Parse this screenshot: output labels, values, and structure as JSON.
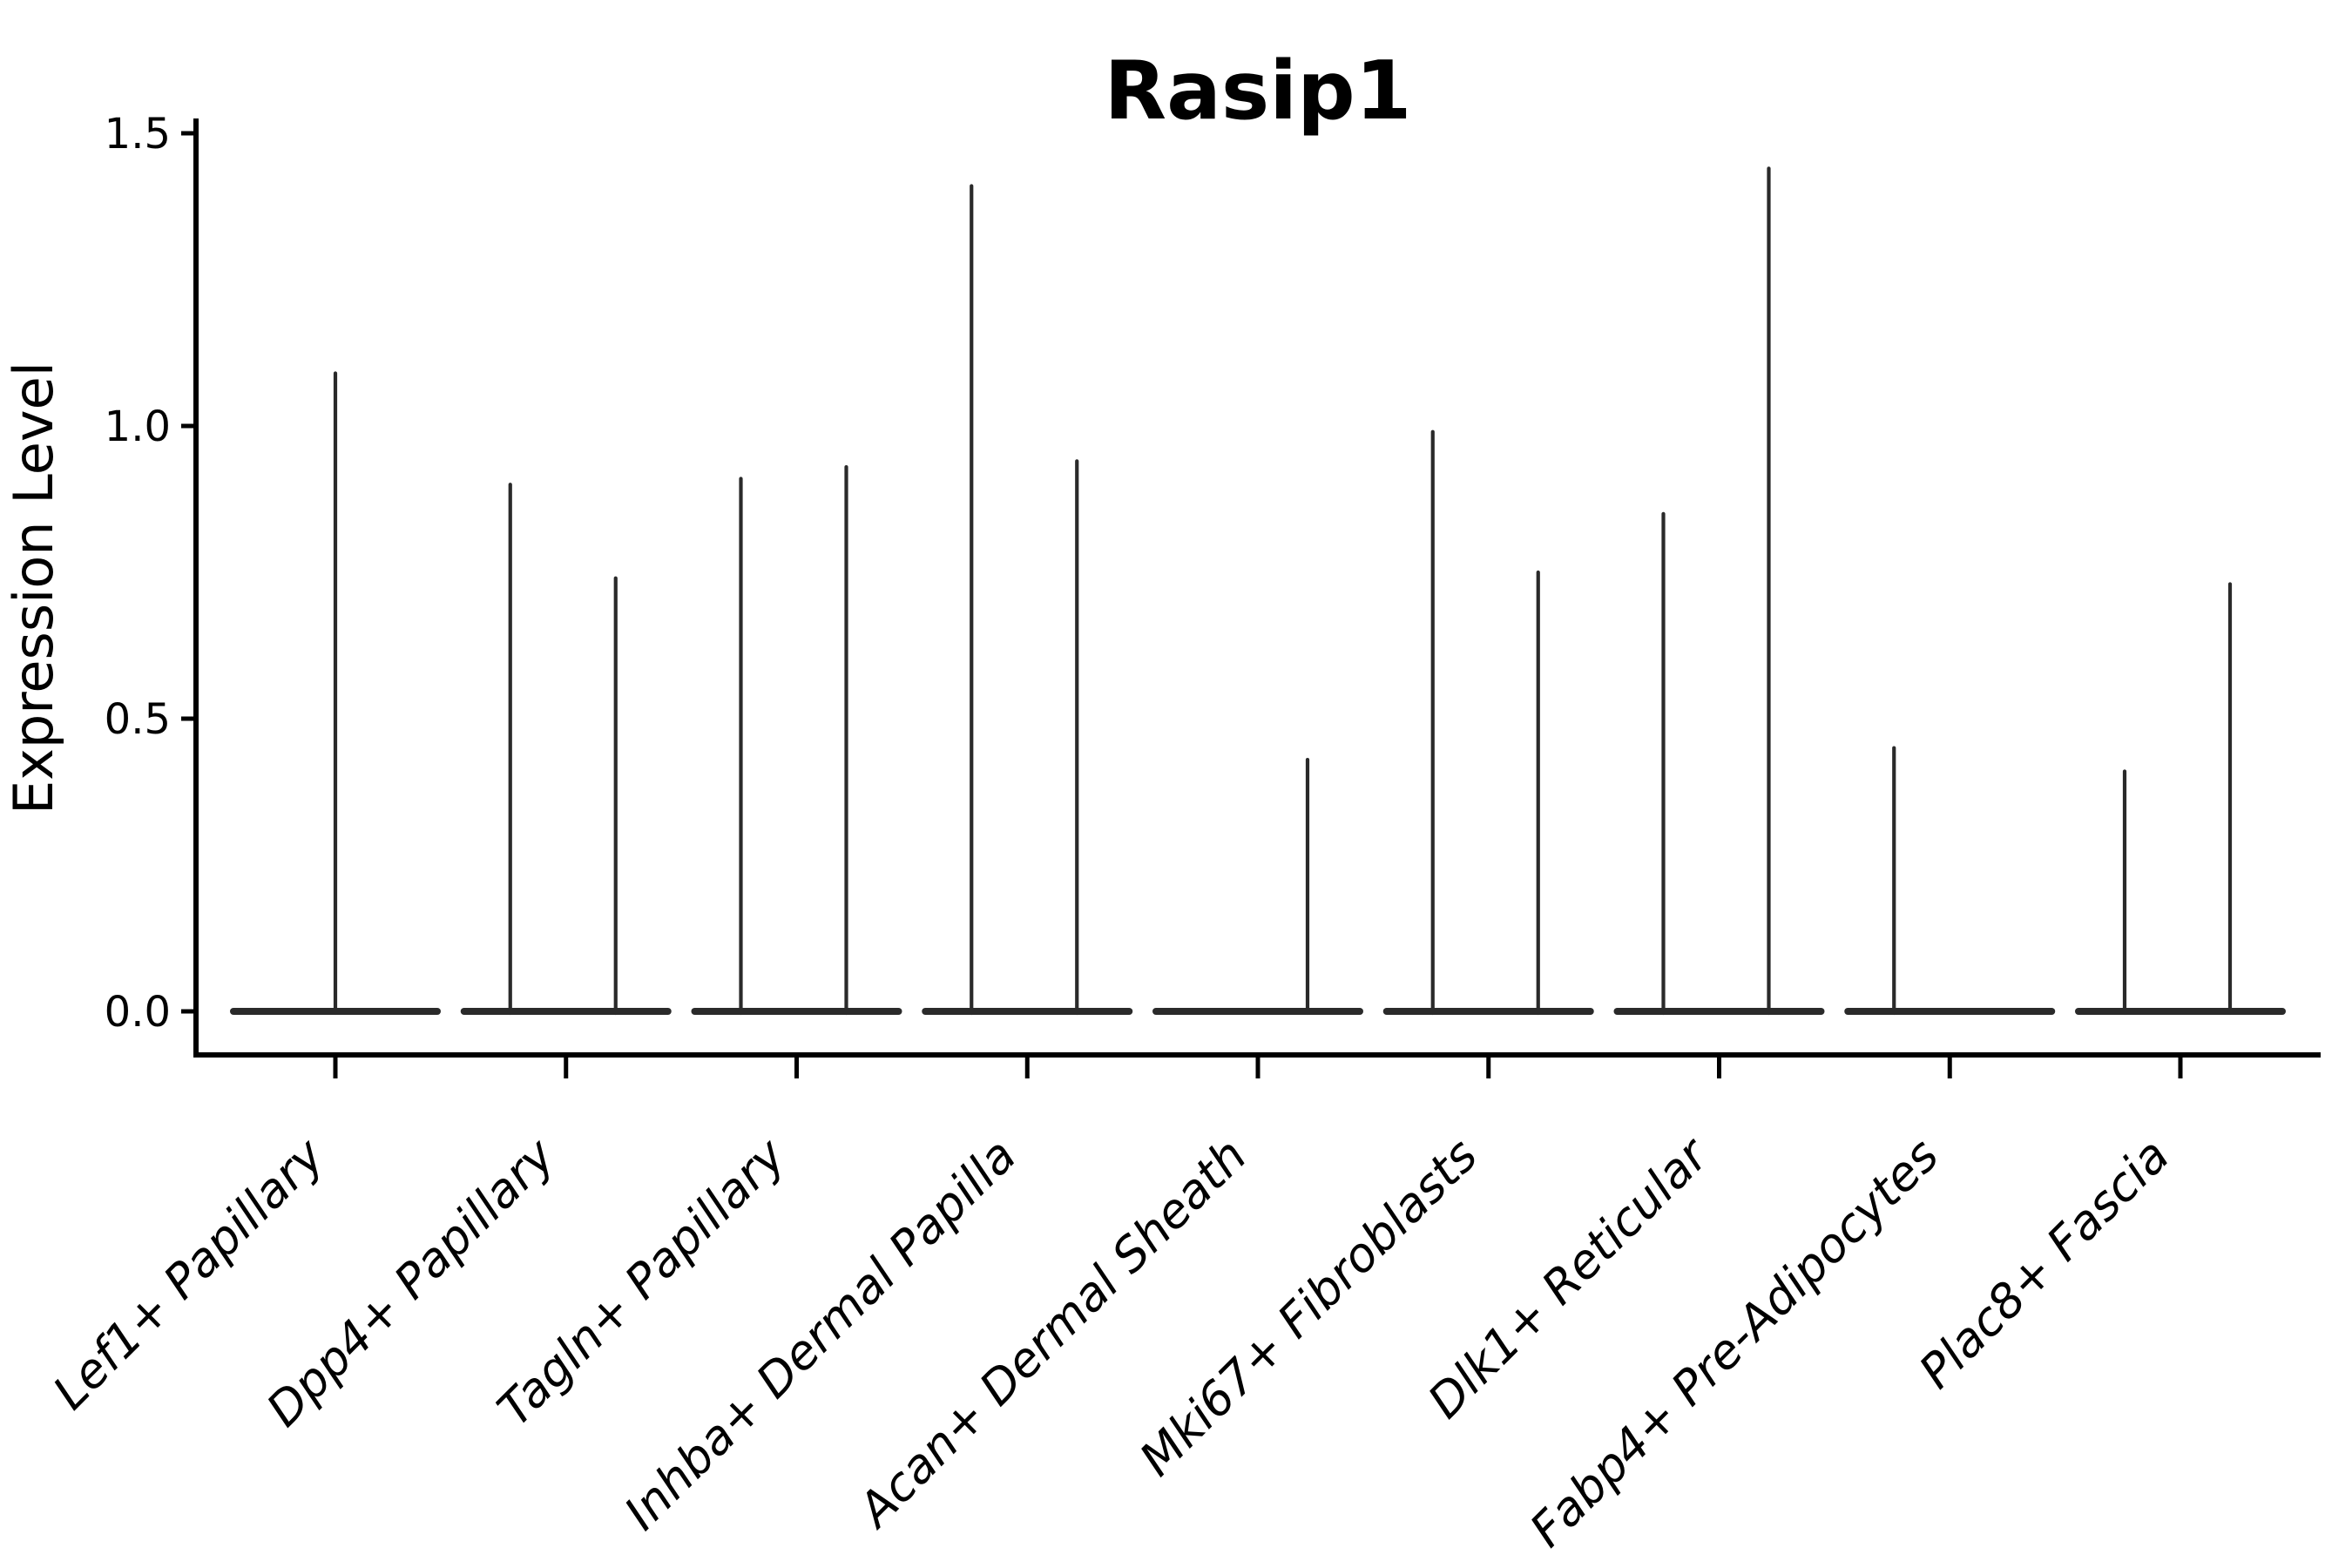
{
  "chart_data": {
    "type": "violin",
    "title": "Rasip1",
    "xlabel": "",
    "ylabel": "Expression Level",
    "grid": false,
    "legend": null,
    "ylim": [
      -0.074,
      1.525
    ],
    "yticks": [
      {
        "label": "0.0",
        "value": 0.0
      },
      {
        "label": "0.5",
        "value": 0.5
      },
      {
        "label": "1.0",
        "value": 1.0
      },
      {
        "label": "1.5",
        "value": 1.5
      }
    ],
    "categories": [
      "Lef1+ Papillary",
      "Dpp4+ Papillary",
      "Tagln+ Papillary",
      "Inhba+ Dermal Papilla",
      "Acan+ Dermal Sheath",
      "Mki67+ Fibroblasts",
      "Dlk1+ Reticular",
      "Fabp4+ Pre-Adipocytes",
      "Plac8+ Fascia"
    ],
    "violins": [
      {
        "category": "Lef1+ Papillary",
        "baseline_value": 0.0,
        "spikes": [
          {
            "pos": "center",
            "max": 1.09
          }
        ]
      },
      {
        "category": "Dpp4+ Papillary",
        "baseline_value": 0.0,
        "spikes": [
          {
            "pos": "left",
            "max": 0.9
          },
          {
            "pos": "right",
            "max": 0.74
          }
        ]
      },
      {
        "category": "Tagln+ Papillary",
        "baseline_value": 0.0,
        "spikes": [
          {
            "pos": "left",
            "max": 0.91
          },
          {
            "pos": "right",
            "max": 0.93
          }
        ]
      },
      {
        "category": "Inhba+ Dermal Papilla",
        "baseline_value": 0.0,
        "spikes": [
          {
            "pos": "left",
            "max": 1.41
          },
          {
            "pos": "right",
            "max": 0.94
          }
        ]
      },
      {
        "category": "Acan+ Dermal Sheath",
        "baseline_value": 0.0,
        "spikes": [
          {
            "pos": "right",
            "max": 0.43
          }
        ]
      },
      {
        "category": "Mki67+ Fibroblasts",
        "baseline_value": 0.0,
        "spikes": [
          {
            "pos": "left",
            "max": 0.99
          },
          {
            "pos": "right",
            "max": 0.75
          }
        ]
      },
      {
        "category": "Dlk1+ Reticular",
        "baseline_value": 0.0,
        "spikes": [
          {
            "pos": "left",
            "max": 0.85
          },
          {
            "pos": "right",
            "max": 1.44
          }
        ]
      },
      {
        "category": "Fabp4+ Pre-Adipocytes",
        "baseline_value": 0.0,
        "spikes": [
          {
            "pos": "left",
            "max": 0.45
          }
        ]
      },
      {
        "category": "Plac8+ Fascia",
        "baseline_value": 0.0,
        "spikes": [
          {
            "pos": "left",
            "max": 0.41
          },
          {
            "pos": "right",
            "max": 0.73
          }
        ]
      }
    ],
    "colors": {
      "violin_line": "#2a2a2a",
      "axis": "#000000",
      "background": "#ffffff"
    }
  }
}
